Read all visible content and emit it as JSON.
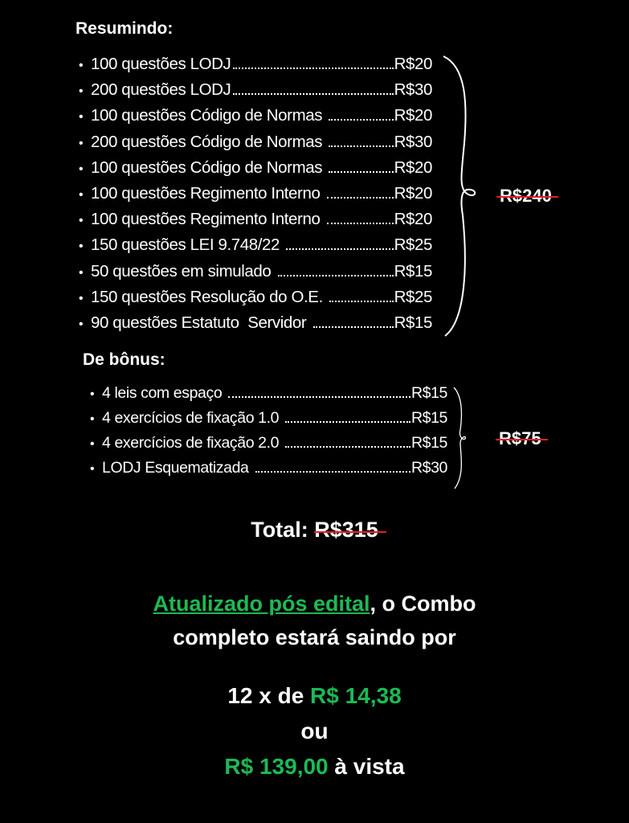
{
  "summary": {
    "title": "Resumindo:",
    "items": [
      {
        "label": "100 questões LODJ",
        "price": "R$20"
      },
      {
        "label": "200 questões LODJ",
        "price": "R$30"
      },
      {
        "label": "100 questões Código de Normas ",
        "price": "R$20"
      },
      {
        "label": "200 questões Código de Normas ",
        "price": "R$30"
      },
      {
        "label": "100 questões Código de Normas ",
        "price": "R$20"
      },
      {
        "label": "100 questões Regimento Interno ",
        "price": "R$20"
      },
      {
        "label": "100 questões Regimento Interno ",
        "price": "R$20"
      },
      {
        "label": "150 questões LEI 9.748/22 ",
        "price": "R$25"
      },
      {
        "label": "50 questões em simulado ",
        "price": "R$15"
      },
      {
        "label": "150 questões Resolução do O.E. ",
        "price": "R$25"
      },
      {
        "label": "90 questões Estatuto  Servidor ",
        "price": "R$15"
      }
    ],
    "subtotal": "R$240"
  },
  "bonus": {
    "title": "De bônus:",
    "items": [
      {
        "label": "4 leis com espaço ",
        "price": "R$15"
      },
      {
        "label": "4 exercícios de fixação 1.0 ",
        "price": "R$15"
      },
      {
        "label": "4 exercícios de fixação 2.0 ",
        "price": "R$15"
      },
      {
        "label": "LODJ Esquematizada ",
        "price": "R$30"
      }
    ],
    "subtotal": "R$75"
  },
  "total": {
    "label": "Total:",
    "value": "R$315"
  },
  "offer": {
    "highlight": "Atualizado pós edital",
    "line1_rest": ", o Combo",
    "line2": "completo estará saindo por",
    "installments_prefix": "12 x de ",
    "installment_value": "R$ 14,38",
    "or": "ou",
    "cash_value": "R$ 139,00",
    "cash_suffix": " à vista"
  },
  "colors": {
    "accent_green": "#1db954",
    "strike_red": "#e0202a",
    "background": "#000000"
  }
}
